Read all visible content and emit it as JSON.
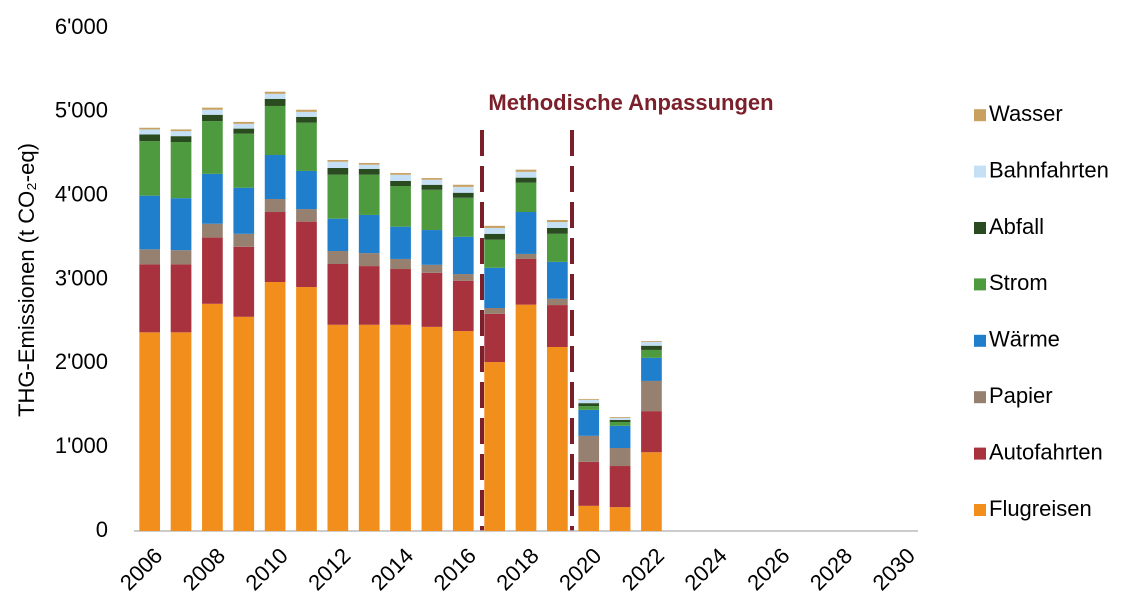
{
  "chart_data": {
    "type": "stacked_bar",
    "y_label": "THG-Emissionen (t CO₂-eq)",
    "annotation": "Methodische Anpassungen",
    "categories": [
      "2006",
      null,
      "2008",
      null,
      "2010",
      null,
      "2012",
      null,
      "2014",
      null,
      "2016",
      null,
      "2018",
      null,
      "2020",
      null,
      "2022",
      null,
      "2024",
      null,
      "2026",
      null,
      "2028",
      null,
      "2030"
    ],
    "series": [
      {
        "name": "Flugreisen",
        "color": "#f28e1c",
        "values": [
          2370,
          2370,
          2710,
          2555,
          2970,
          2910,
          2460,
          2460,
          2460,
          2435,
          2385,
          2015,
          2700,
          2195,
          300,
          285,
          940,
          null,
          null,
          null,
          null,
          null,
          null,
          null,
          null
        ]
      },
      {
        "name": "Autofahrten",
        "color": "#a8323e",
        "values": [
          810,
          810,
          790,
          835,
          835,
          780,
          725,
          700,
          665,
          645,
          600,
          575,
          545,
          500,
          525,
          490,
          490,
          null,
          null,
          null,
          null,
          null,
          null,
          null,
          null
        ]
      },
      {
        "name": "Papier",
        "color": "#968070",
        "values": [
          180,
          170,
          165,
          155,
          155,
          150,
          155,
          155,
          120,
          95,
          80,
          70,
          60,
          75,
          310,
          215,
          360,
          null,
          null,
          null,
          null,
          null,
          null,
          null,
          null
        ]
      },
      {
        "name": "Wärme",
        "color": "#1f7fcc",
        "values": [
          640,
          620,
          595,
          550,
          525,
          455,
          385,
          455,
          385,
          415,
          445,
          480,
          500,
          440,
          310,
          265,
          275,
          null,
          null,
          null,
          null,
          null,
          null,
          null,
          null
        ]
      },
      {
        "name": "Strom",
        "color": "#4e9a3f",
        "values": [
          650,
          670,
          630,
          645,
          585,
          575,
          525,
          480,
          485,
          480,
          465,
          335,
          350,
          335,
          45,
          45,
          95,
          null,
          null,
          null,
          null,
          null,
          null,
          null,
          null
        ]
      },
      {
        "name": "Abfall",
        "color": "#2a4a20",
        "values": [
          80,
          70,
          75,
          60,
          85,
          70,
          80,
          70,
          60,
          60,
          60,
          70,
          60,
          70,
          35,
          25,
          50,
          null,
          null,
          null,
          null,
          null,
          null,
          null,
          null
        ]
      },
      {
        "name": "Bahnfahrten",
        "color": "#c5e0f5",
        "values": [
          60,
          60,
          60,
          57,
          60,
          60,
          75,
          50,
          75,
          60,
          70,
          70,
          70,
          70,
          40,
          25,
          45,
          null,
          null,
          null,
          null,
          null,
          null,
          null,
          null
        ]
      },
      {
        "name": "Wasser",
        "color": "#c8a060",
        "values": [
          20,
          20,
          25,
          23,
          25,
          25,
          20,
          20,
          20,
          20,
          25,
          25,
          25,
          25,
          10,
          10,
          10,
          null,
          null,
          null,
          null,
          null,
          null,
          null,
          null
        ]
      }
    ],
    "ylim": [
      0,
      6000
    ],
    "yticks": [
      0,
      {
        "value": 1000,
        "label": "1'000"
      },
      {
        "value": 2000,
        "label": "2'000"
      },
      {
        "value": 3000,
        "label": "3'000"
      },
      {
        "value": 4000,
        "label": "4'000"
      },
      {
        "value": 5000,
        "label": "5'000"
      },
      {
        "value": 6000,
        "label": "6'000"
      }
    ],
    "grid": false
  }
}
